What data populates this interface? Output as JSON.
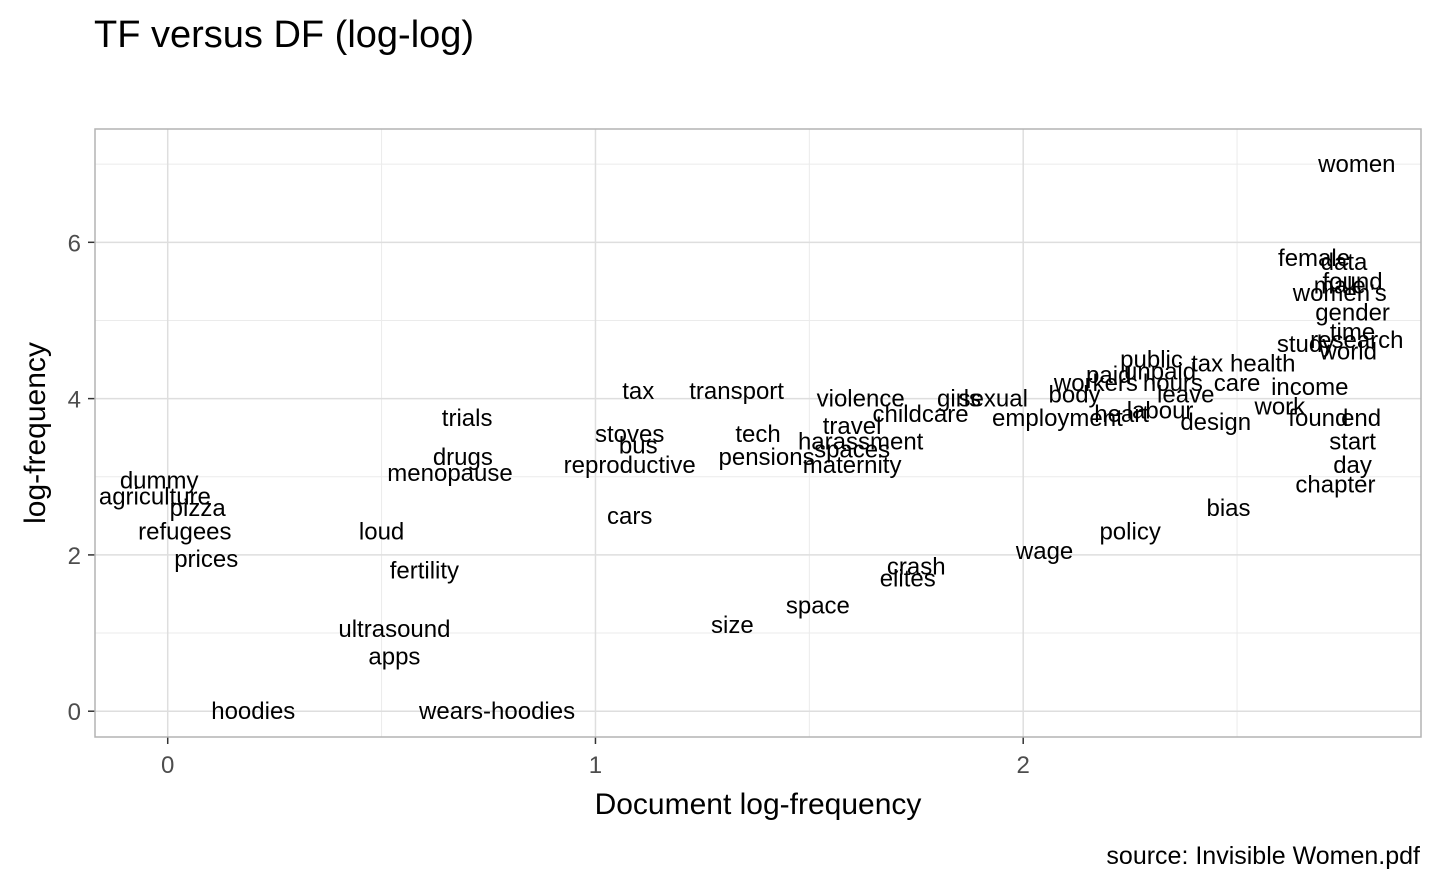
{
  "chart_data": {
    "type": "scatter",
    "title": "TF versus DF (log-log)",
    "xlabel": "Document log-frequency",
    "ylabel": "log-frequency",
    "caption": "source: Invisible Women.pdf",
    "xlim": [
      -0.17,
      2.93
    ],
    "ylim": [
      -0.33,
      7.45
    ],
    "xticks": [
      0,
      1,
      2
    ],
    "yticks": [
      0,
      2,
      4,
      6
    ],
    "grid": true,
    "points": [
      {
        "label": "women",
        "x": 2.78,
        "y": 7.0
      },
      {
        "label": "female",
        "x": 2.68,
        "y": 5.8
      },
      {
        "label": "data",
        "x": 2.75,
        "y": 5.75
      },
      {
        "label": "found",
        "x": 2.77,
        "y": 5.5
      },
      {
        "label": "male",
        "x": 2.74,
        "y": 5.45
      },
      {
        "label": "women's",
        "x": 2.74,
        "y": 5.35
      },
      {
        "label": "gender",
        "x": 2.77,
        "y": 5.1
      },
      {
        "label": "time",
        "x": 2.77,
        "y": 4.85
      },
      {
        "label": "research",
        "x": 2.78,
        "y": 4.75
      },
      {
        "label": "study",
        "x": 2.66,
        "y": 4.7
      },
      {
        "label": "world",
        "x": 2.76,
        "y": 4.6
      },
      {
        "label": "public",
        "x": 2.3,
        "y": 4.5
      },
      {
        "label": "tax",
        "x": 2.43,
        "y": 4.45
      },
      {
        "label": "health",
        "x": 2.56,
        "y": 4.45
      },
      {
        "label": "unpaid",
        "x": 2.32,
        "y": 4.35
      },
      {
        "label": "paid",
        "x": 2.2,
        "y": 4.3
      },
      {
        "label": "workers",
        "x": 2.17,
        "y": 4.2
      },
      {
        "label": "hours",
        "x": 2.35,
        "y": 4.2
      },
      {
        "label": "care",
        "x": 2.5,
        "y": 4.2
      },
      {
        "label": "income",
        "x": 2.67,
        "y": 4.15
      },
      {
        "label": "leave",
        "x": 2.38,
        "y": 4.05
      },
      {
        "label": "body",
        "x": 2.12,
        "y": 4.05
      },
      {
        "label": "labour",
        "x": 2.32,
        "y": 3.85
      },
      {
        "label": "heart",
        "x": 2.23,
        "y": 3.8
      },
      {
        "label": "work",
        "x": 2.6,
        "y": 3.9
      },
      {
        "label": "design",
        "x": 2.45,
        "y": 3.7
      },
      {
        "label": "found",
        "x": 2.69,
        "y": 3.75
      },
      {
        "label": "end",
        "x": 2.79,
        "y": 3.75
      },
      {
        "label": "start",
        "x": 2.77,
        "y": 3.45
      },
      {
        "label": "day",
        "x": 2.77,
        "y": 3.15
      },
      {
        "label": "chapter",
        "x": 2.73,
        "y": 2.9
      },
      {
        "label": "employment",
        "x": 2.08,
        "y": 3.75
      },
      {
        "label": "sexual",
        "x": 1.93,
        "y": 4.0
      },
      {
        "label": "girls",
        "x": 1.85,
        "y": 4.0
      },
      {
        "label": "violence",
        "x": 1.62,
        "y": 4.0
      },
      {
        "label": "childcare",
        "x": 1.76,
        "y": 3.8
      },
      {
        "label": "travel",
        "x": 1.6,
        "y": 3.65
      },
      {
        "label": "harassment",
        "x": 1.62,
        "y": 3.45
      },
      {
        "label": "spaces",
        "x": 1.6,
        "y": 3.35
      },
      {
        "label": "tech",
        "x": 1.38,
        "y": 3.55
      },
      {
        "label": "transport",
        "x": 1.33,
        "y": 4.1
      },
      {
        "label": "tax",
        "x": 1.1,
        "y": 4.1
      },
      {
        "label": "stoves",
        "x": 1.08,
        "y": 3.55
      },
      {
        "label": "bus",
        "x": 1.1,
        "y": 3.4
      },
      {
        "label": "reproductive",
        "x": 1.08,
        "y": 3.15
      },
      {
        "label": "maternity",
        "x": 1.6,
        "y": 3.15
      },
      {
        "label": "pensions",
        "x": 1.4,
        "y": 3.25
      },
      {
        "label": "trials",
        "x": 0.7,
        "y": 3.75
      },
      {
        "label": "drugs",
        "x": 0.69,
        "y": 3.25
      },
      {
        "label": "menopause",
        "x": 0.66,
        "y": 3.05
      },
      {
        "label": "cars",
        "x": 1.08,
        "y": 2.5
      },
      {
        "label": "dummy",
        "x": -0.02,
        "y": 2.95
      },
      {
        "label": "agriculture",
        "x": -0.03,
        "y": 2.75
      },
      {
        "label": "pizza",
        "x": 0.07,
        "y": 2.6
      },
      {
        "label": "refugees",
        "x": 0.04,
        "y": 2.3
      },
      {
        "label": "prices",
        "x": 0.09,
        "y": 1.95
      },
      {
        "label": "ultrasound",
        "x": 0.53,
        "y": 1.05
      },
      {
        "label": "apps",
        "x": 0.53,
        "y": 0.7
      },
      {
        "label": "hoodies",
        "x": 0.2,
        "y": 0.0
      },
      {
        "label": "wears-hoodies",
        "x": 0.77,
        "y": 0.0
      },
      {
        "label": "elites",
        "x": 1.73,
        "y": 1.7
      },
      {
        "label": "wage",
        "x": 2.05,
        "y": 2.05
      },
      {
        "label": "policy",
        "x": 2.25,
        "y": 2.3
      },
      {
        "label": "space",
        "x": 1.52,
        "y": 1.35
      },
      {
        "label": "bias",
        "x": 2.48,
        "y": 2.6
      },
      {
        "label": "size",
        "x": 1.32,
        "y": 1.1
      },
      {
        "label": "crash",
        "x": 1.75,
        "y": 1.85
      },
      {
        "label": "loud",
        "x": 0.5,
        "y": 2.3
      },
      {
        "label": "fertility",
        "x": 0.6,
        "y": 1.8
      }
    ]
  }
}
